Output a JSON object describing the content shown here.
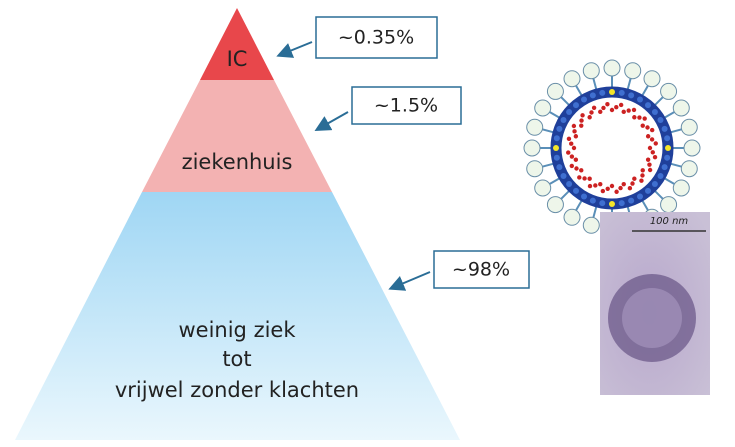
{
  "levels": [
    {
      "lines": [
        "IC"
      ],
      "share": "~0.35%"
    },
    {
      "lines": [
        "ziekenhuis"
      ],
      "share": "~1.5%"
    },
    {
      "lines": [
        "weinig ziek",
        "tot",
        "vrijwel zonder klachten"
      ],
      "share": "~98%"
    }
  ],
  "micrograph": {
    "scale": "100 nm"
  }
}
